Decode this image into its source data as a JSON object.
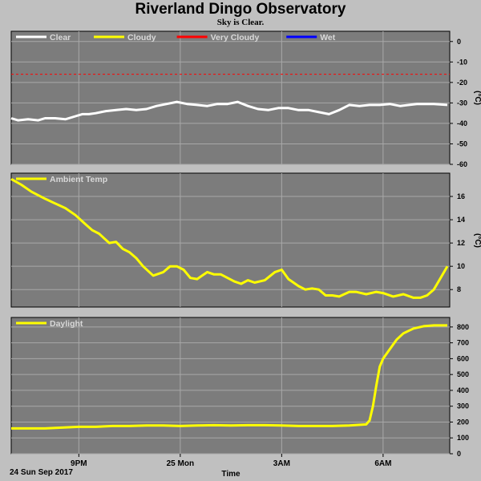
{
  "title": "Riverland Dingo Observatory",
  "subtitle": "Sky is Clear.",
  "bottom": {
    "date_label": "24 Sun Sep 2017",
    "xlabel": "Time"
  },
  "x_ticks": [
    "9PM",
    "25 Mon",
    "3AM",
    "6AM"
  ],
  "chart_data": [
    {
      "type": "line",
      "unit": "(°C)",
      "ylim": [
        -60,
        5
      ],
      "yticks": [
        0,
        -10,
        -20,
        -30,
        -40,
        -50,
        -60
      ],
      "grid": true,
      "legend": [
        {
          "label": "Clear",
          "color": "#ffffff"
        },
        {
          "label": "Cloudy",
          "color": "#ffff00"
        },
        {
          "label": "Very Cloudy",
          "color": "#ff0000"
        },
        {
          "label": "Wet",
          "color": "#0000ff"
        }
      ],
      "threshold": {
        "value": -16,
        "color": "#ff0000"
      },
      "series": [
        {
          "name": "Clear",
          "color": "#ffffff",
          "x": [
            0,
            0.2,
            0.5,
            0.8,
            1.0,
            1.3,
            1.6,
            1.9,
            2.1,
            2.3,
            2.5,
            2.8,
            3.1,
            3.4,
            3.7,
            4.0,
            4.3,
            4.6,
            4.9,
            5.2,
            5.5,
            5.8,
            6.1,
            6.4,
            6.7,
            7.0,
            7.3,
            7.6,
            7.9,
            8.2,
            8.5,
            8.8,
            9.1,
            9.4,
            9.7,
            10.0,
            10.3,
            10.6,
            10.9,
            11.2,
            11.5,
            12.0,
            12.5,
            12.9
          ],
          "y": [
            -37.5,
            -38.5,
            -38,
            -38.5,
            -37.5,
            -37.5,
            -38,
            -36.5,
            -35.5,
            -35.5,
            -35,
            -34,
            -33.5,
            -33,
            -33.5,
            -33,
            -31.5,
            -30.5,
            -29.5,
            -30.5,
            -31,
            -31.5,
            -30.5,
            -30.5,
            -29.5,
            -31.5,
            -33,
            -33.5,
            -32.5,
            -32.5,
            -33.5,
            -33.5,
            -34.5,
            -35.5,
            -33.5,
            -31,
            -31.5,
            -31,
            -31,
            -30.5,
            -31.5,
            -30.5,
            -30.5,
            -31
          ]
        }
      ]
    },
    {
      "type": "line",
      "unit": "(°C)",
      "ylim": [
        6.5,
        18
      ],
      "yticks": [
        16,
        14,
        12,
        10,
        8
      ],
      "grid": true,
      "legend": [
        {
          "label": "Ambient Temp",
          "color": "#ffff00"
        }
      ],
      "series": [
        {
          "name": "Ambient Temp",
          "color": "#ffff00",
          "x": [
            0,
            0.3,
            0.6,
            1.0,
            1.3,
            1.6,
            1.9,
            2.2,
            2.4,
            2.6,
            2.9,
            3.1,
            3.3,
            3.5,
            3.7,
            3.9,
            4.2,
            4.5,
            4.7,
            4.9,
            5.1,
            5.3,
            5.5,
            5.8,
            6.0,
            6.2,
            6.4,
            6.6,
            6.8,
            7.0,
            7.2,
            7.5,
            7.8,
            8.0,
            8.2,
            8.5,
            8.7,
            8.9,
            9.1,
            9.3,
            9.5,
            9.7,
            10.0,
            10.2,
            10.5,
            10.8,
            11.0,
            11.3,
            11.6,
            11.9,
            12.1,
            12.3,
            12.5,
            12.7,
            12.9
          ],
          "y": [
            17.5,
            17,
            16.4,
            15.8,
            15.4,
            15,
            14.4,
            13.6,
            13.1,
            12.8,
            12.0,
            12.1,
            11.5,
            11.2,
            10.7,
            10.0,
            9.2,
            9.5,
            10.0,
            10.0,
            9.7,
            9.0,
            8.9,
            9.5,
            9.3,
            9.3,
            9.0,
            8.7,
            8.5,
            8.8,
            8.6,
            8.8,
            9.5,
            9.7,
            8.9,
            8.3,
            8.0,
            8.1,
            8.0,
            7.5,
            7.5,
            7.4,
            7.8,
            7.8,
            7.6,
            7.8,
            7.7,
            7.4,
            7.6,
            7.3,
            7.3,
            7.5,
            8.0,
            9.0,
            10.0
          ]
        }
      ]
    },
    {
      "type": "line",
      "ylim": [
        0,
        860
      ],
      "yticks": [
        800,
        700,
        600,
        500,
        400,
        300,
        200,
        100,
        0
      ],
      "grid": true,
      "legend": [
        {
          "label": "Daylight",
          "color": "#ffff00"
        }
      ],
      "series": [
        {
          "name": "Daylight",
          "color": "#ffff00",
          "x": [
            0,
            0.5,
            1.0,
            1.5,
            2.0,
            2.5,
            3.0,
            3.5,
            4.0,
            4.5,
            5.0,
            5.5,
            6.0,
            6.5,
            7.0,
            7.5,
            8.0,
            8.5,
            9.0,
            9.5,
            10.0,
            10.5,
            10.6,
            10.7,
            10.8,
            10.9,
            11.0,
            11.2,
            11.4,
            11.6,
            11.9,
            12.2,
            12.5,
            12.9
          ],
          "y": [
            160,
            160,
            160,
            165,
            170,
            170,
            175,
            175,
            178,
            178,
            175,
            178,
            180,
            178,
            180,
            180,
            178,
            175,
            175,
            175,
            178,
            185,
            210,
            300,
            430,
            550,
            600,
            660,
            720,
            760,
            790,
            805,
            810,
            810
          ]
        }
      ]
    }
  ]
}
